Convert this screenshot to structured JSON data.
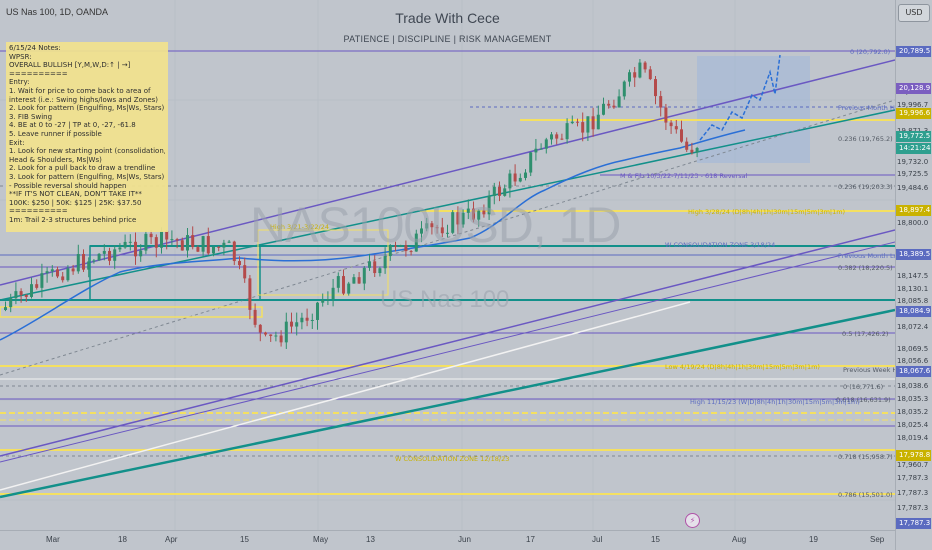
{
  "header": {
    "symbol": "US Nas 100, 1D, OANDA",
    "title": "Trade With Cece",
    "subtitle": "PATIENCE  |  DISCIPLINE  |  RISK MANAGEMENT",
    "currency_button": "USD"
  },
  "watermark": {
    "main": "NAS100USD, 1D",
    "sub": "US Nas 100"
  },
  "notes": [
    "6/15/24 Notes:",
    "WPSR:",
    "OVERALL BULLISH [Y,M,W,D:↑ | →]",
    "==========",
    "Entry:",
    "1. Wait for price to come back to area of",
    "   interest (i.e.: Swing highs/lows and Zones)",
    "2. Look for pattern (Engulfing, Ms|Ws, Stars)",
    "3. FIB Swing",
    "4. BE at 0 to -27 | TP at 0, -27, -61.8",
    "5. Leave runner if possible",
    "Exit:",
    "1. Look for new starting point (consolidation,",
    "     Head & Shoulders, Ms|Ws)",
    "2. Look for a pull back to draw a trendline",
    "3. Look for pattern (Engulfing, Ms|Ws, Stars)",
    "   - Possible reversal should happen",
    "      **IF IT'S NOT CLEAN, DON'T TAKE IT**",
    "      100K: $250  |  50K: $125  |  25K: $37.50",
    "==========",
    "1m: Trail 2-3 structures behind price"
  ],
  "price_ticks": [
    "20,128.9",
    "19,996.7",
    "19,871.3",
    "19,732.0",
    "19,725.5",
    "19,484.6",
    "18,800.0",
    "18,147.5",
    "18,130.1",
    "18,085.8",
    "18,080.6",
    "18,072.4",
    "18,069.5",
    "18,056.6",
    "18,038.6",
    "18,035.3",
    "18,035.2",
    "18,025.4",
    "18,019.4",
    "17,968.0",
    "17,960.7",
    "17,787.3",
    "17,787.3",
    "17,787.3"
  ],
  "price_badges": [
    {
      "text": "20,789.5",
      "color": "#5b6bc0"
    },
    {
      "text": "20,128.9",
      "color": "#7b5fc0"
    },
    {
      "text": "19,996.6",
      "color": "#c9b200"
    },
    {
      "text": "19,772.5",
      "color": "#2e9f8f"
    },
    {
      "text": "14:21:24",
      "color": "#2e9f8f"
    },
    {
      "text": "18,897.4",
      "color": "#c9b200"
    },
    {
      "text": "18,389.5",
      "color": "#5b6bc0"
    },
    {
      "text": "18,084.9",
      "color": "#5b6bc0"
    },
    {
      "text": "18,067.6",
      "color": "#5b6bc0"
    },
    {
      "text": "17,978.8",
      "color": "#c9b200"
    },
    {
      "text": "17,787.3",
      "color": "#5b6bc0"
    }
  ],
  "time_labels": [
    "Mar",
    "18",
    "Apr",
    "15",
    "May",
    "13",
    "Jun",
    "17",
    "Jul",
    "15",
    "Aug",
    "19",
    "Sep"
  ],
  "fib_labels": [
    "0 (20,792.0)",
    "0.236 (19,203.3)",
    "0.382 (18,220.5)",
    "0.5 (17,426.2)",
    "0 (16,771.6)",
    "0.618 (16,631.9)",
    "0.718 (15,958.7)",
    "0.786 (15,501.0)",
    "0.236 (19,765.2)"
  ],
  "annotations": [
    "Previous Month High",
    "Previous Month Low",
    "W CONSOLIDATION ZONE 3/18/24",
    "M & Fib 10/3/22-7/11/23 - 618 Reversal",
    "High 3/28/24 (D|8h|4h|1h|30m|15m|5m|3m|1m)",
    "Low 4/19/24 (D|8h|4h|1h|30m|15m|5m|3m|1m)",
    "High 11/15/23 (W|D|8h|4h|1h|30m|15m|5m|3m|1m)",
    "W CONSOLIDATION ZONE 12/18/23",
    "High 3/21-3/22/24",
    "Previous Week High"
  ],
  "colors": {
    "background": "#c0c5cc",
    "candle_up": "#2f8f6e",
    "candle_down": "#b44a4a",
    "trend_purple": "#6a58c2",
    "trend_teal": "#12908a",
    "level_yellow": "#f4e061",
    "ma_blue": "#2a6fd6",
    "notes_bg": "#f2e38e"
  },
  "icons": [
    "tradingview-event-icon"
  ]
}
